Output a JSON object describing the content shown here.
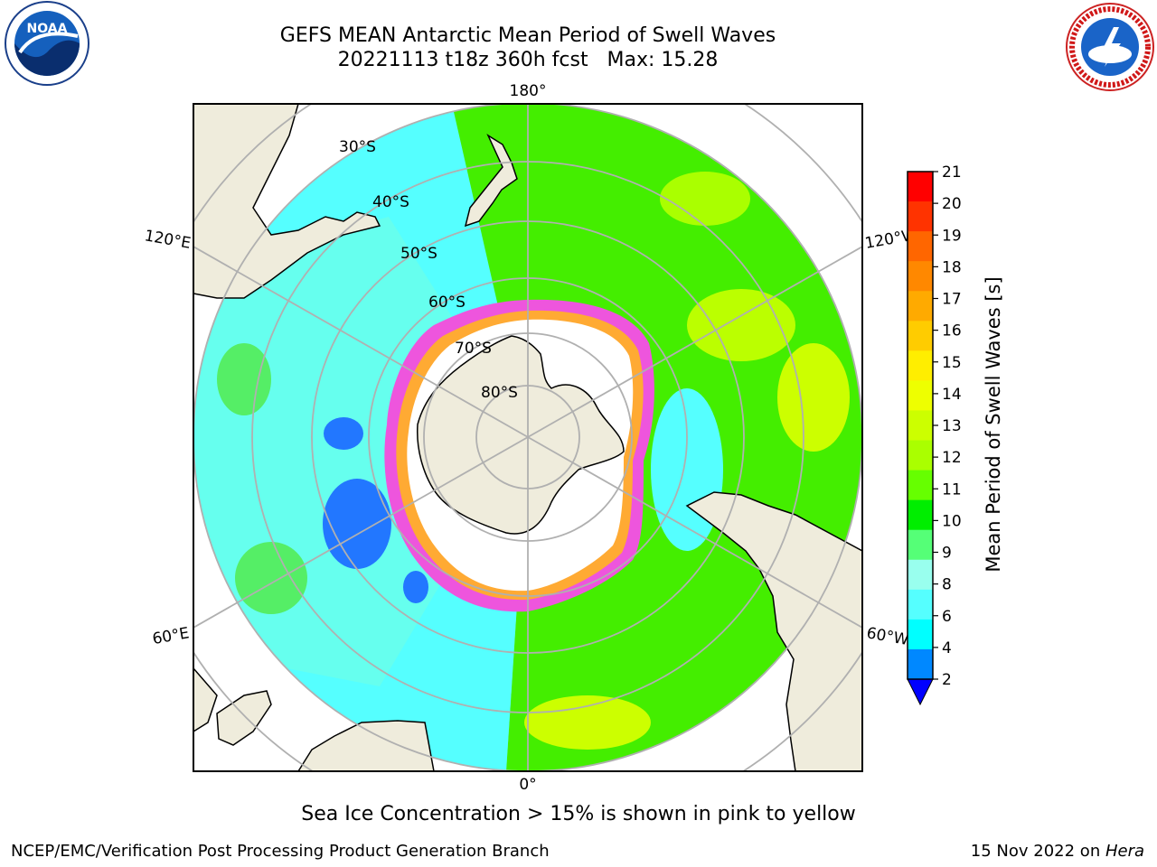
{
  "title": {
    "line1": "GEFS MEAN Antarctic Mean Period of Swell Waves",
    "line2": "20221113 t18z 360h fcst   Max: 15.28"
  },
  "logos": {
    "left": "noaa-logo",
    "right": "national-weather-service-logo",
    "noaa_text": "NOAA",
    "right_ring_text": "NATIONAL WEATHER SERVICE"
  },
  "map": {
    "projection": "south-polar-stereographic",
    "longitude_labels": {
      "top": "180°",
      "bottom": "0°",
      "upper_left": "120°E",
      "upper_right": "120°W",
      "lower_left": "60°E",
      "lower_right": "60°W"
    },
    "latitude_labels": [
      "30°S",
      "40°S",
      "50°S",
      "60°S",
      "70°S",
      "80°S"
    ],
    "colors": {
      "land": "#efecdc",
      "grid": "#b0b0b0",
      "sea_ice_edge": "#ee55dd",
      "ice_interior": "#ffffff",
      "ice_orange": "#ffaa33"
    }
  },
  "colorbar": {
    "label": "Mean Period of Swell Waves [s]",
    "ticks": [
      "21",
      "20",
      "19",
      "18",
      "17",
      "16",
      "15",
      "14",
      "13",
      "12",
      "11",
      "10",
      "9",
      "8",
      "6",
      "4",
      "2"
    ],
    "colors": [
      "#ff0000",
      "#ff3300",
      "#ff6600",
      "#ff8800",
      "#ffaa00",
      "#ffcc00",
      "#ffee00",
      "#eeff00",
      "#ccff00",
      "#aaff00",
      "#66ff00",
      "#00ee00",
      "#55ff77",
      "#99ffee",
      "#55ffff",
      "#00ffff",
      "#0088ff",
      "#0000ff"
    ],
    "extend": "min"
  },
  "ice_note": "Sea Ice Concentration > 15% is shown in pink to yellow",
  "footer": {
    "left": "NCEP/EMC/Verification Post Processing Product Generation Branch",
    "right_prefix": "15 Nov 2022 on ",
    "right_host": "Hera"
  }
}
